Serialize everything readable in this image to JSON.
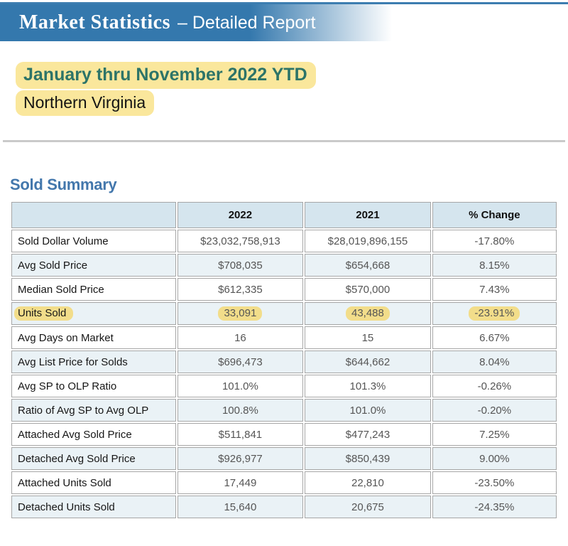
{
  "header": {
    "title_serif": "Market Statistics",
    "title_rest": "– Detailed Report"
  },
  "report_scope": {
    "period": "January thru November 2022 YTD",
    "region": "Northern Virginia"
  },
  "section": {
    "title": "Sold Summary"
  },
  "table": {
    "columns": [
      "",
      "2022",
      "2021",
      "% Change"
    ],
    "rows": [
      {
        "label": "Sold Dollar Volume",
        "y2022": "$23,032,758,913",
        "y2021": "$28,019,896,155",
        "change": "-17.80%"
      },
      {
        "label": "Avg Sold Price",
        "y2022": "$708,035",
        "y2021": "$654,668",
        "change": "8.15%"
      },
      {
        "label": "Median Sold Price",
        "y2022": "$612,335",
        "y2021": "$570,000",
        "change": "7.43%"
      },
      {
        "label": "Units Sold",
        "y2022": "33,091",
        "y2021": "43,488",
        "change": "-23.91%",
        "highlighted": true
      },
      {
        "label": "Avg Days on Market",
        "y2022": "16",
        "y2021": "15",
        "change": "6.67%"
      },
      {
        "label": "Avg List Price for Solds",
        "y2022": "$696,473",
        "y2021": "$644,662",
        "change": "8.04%"
      },
      {
        "label": "Avg SP to OLP Ratio",
        "y2022": "101.0%",
        "y2021": "101.3%",
        "change": "-0.26%"
      },
      {
        "label": "Ratio of Avg SP to Avg OLP",
        "y2022": "100.8%",
        "y2021": "101.0%",
        "change": "-0.20%"
      },
      {
        "label": "Attached Avg Sold Price",
        "y2022": "$511,841",
        "y2021": "$477,243",
        "change": "7.25%"
      },
      {
        "label": "Detached Avg Sold Price",
        "y2022": "$926,977",
        "y2021": "$850,439",
        "change": "9.00%"
      },
      {
        "label": "Attached Units Sold",
        "y2022": "17,449",
        "y2021": "22,810",
        "change": "-23.50%"
      },
      {
        "label": "Detached Units Sold",
        "y2022": "15,640",
        "y2021": "20,675",
        "change": "-24.35%"
      }
    ]
  },
  "colors": {
    "banner_blue": "#3478ad",
    "banner_top_line": "#3c7db0",
    "highlight_yellow": "#fae79c",
    "table_highlight_yellow": "#f2dd8a",
    "period_teal": "#2d7468",
    "section_blue": "#4377ac",
    "table_header_bg": "#d5e5ee",
    "table_alt_row_bg": "#eaf2f6",
    "table_border": "#a6a6a6"
  }
}
